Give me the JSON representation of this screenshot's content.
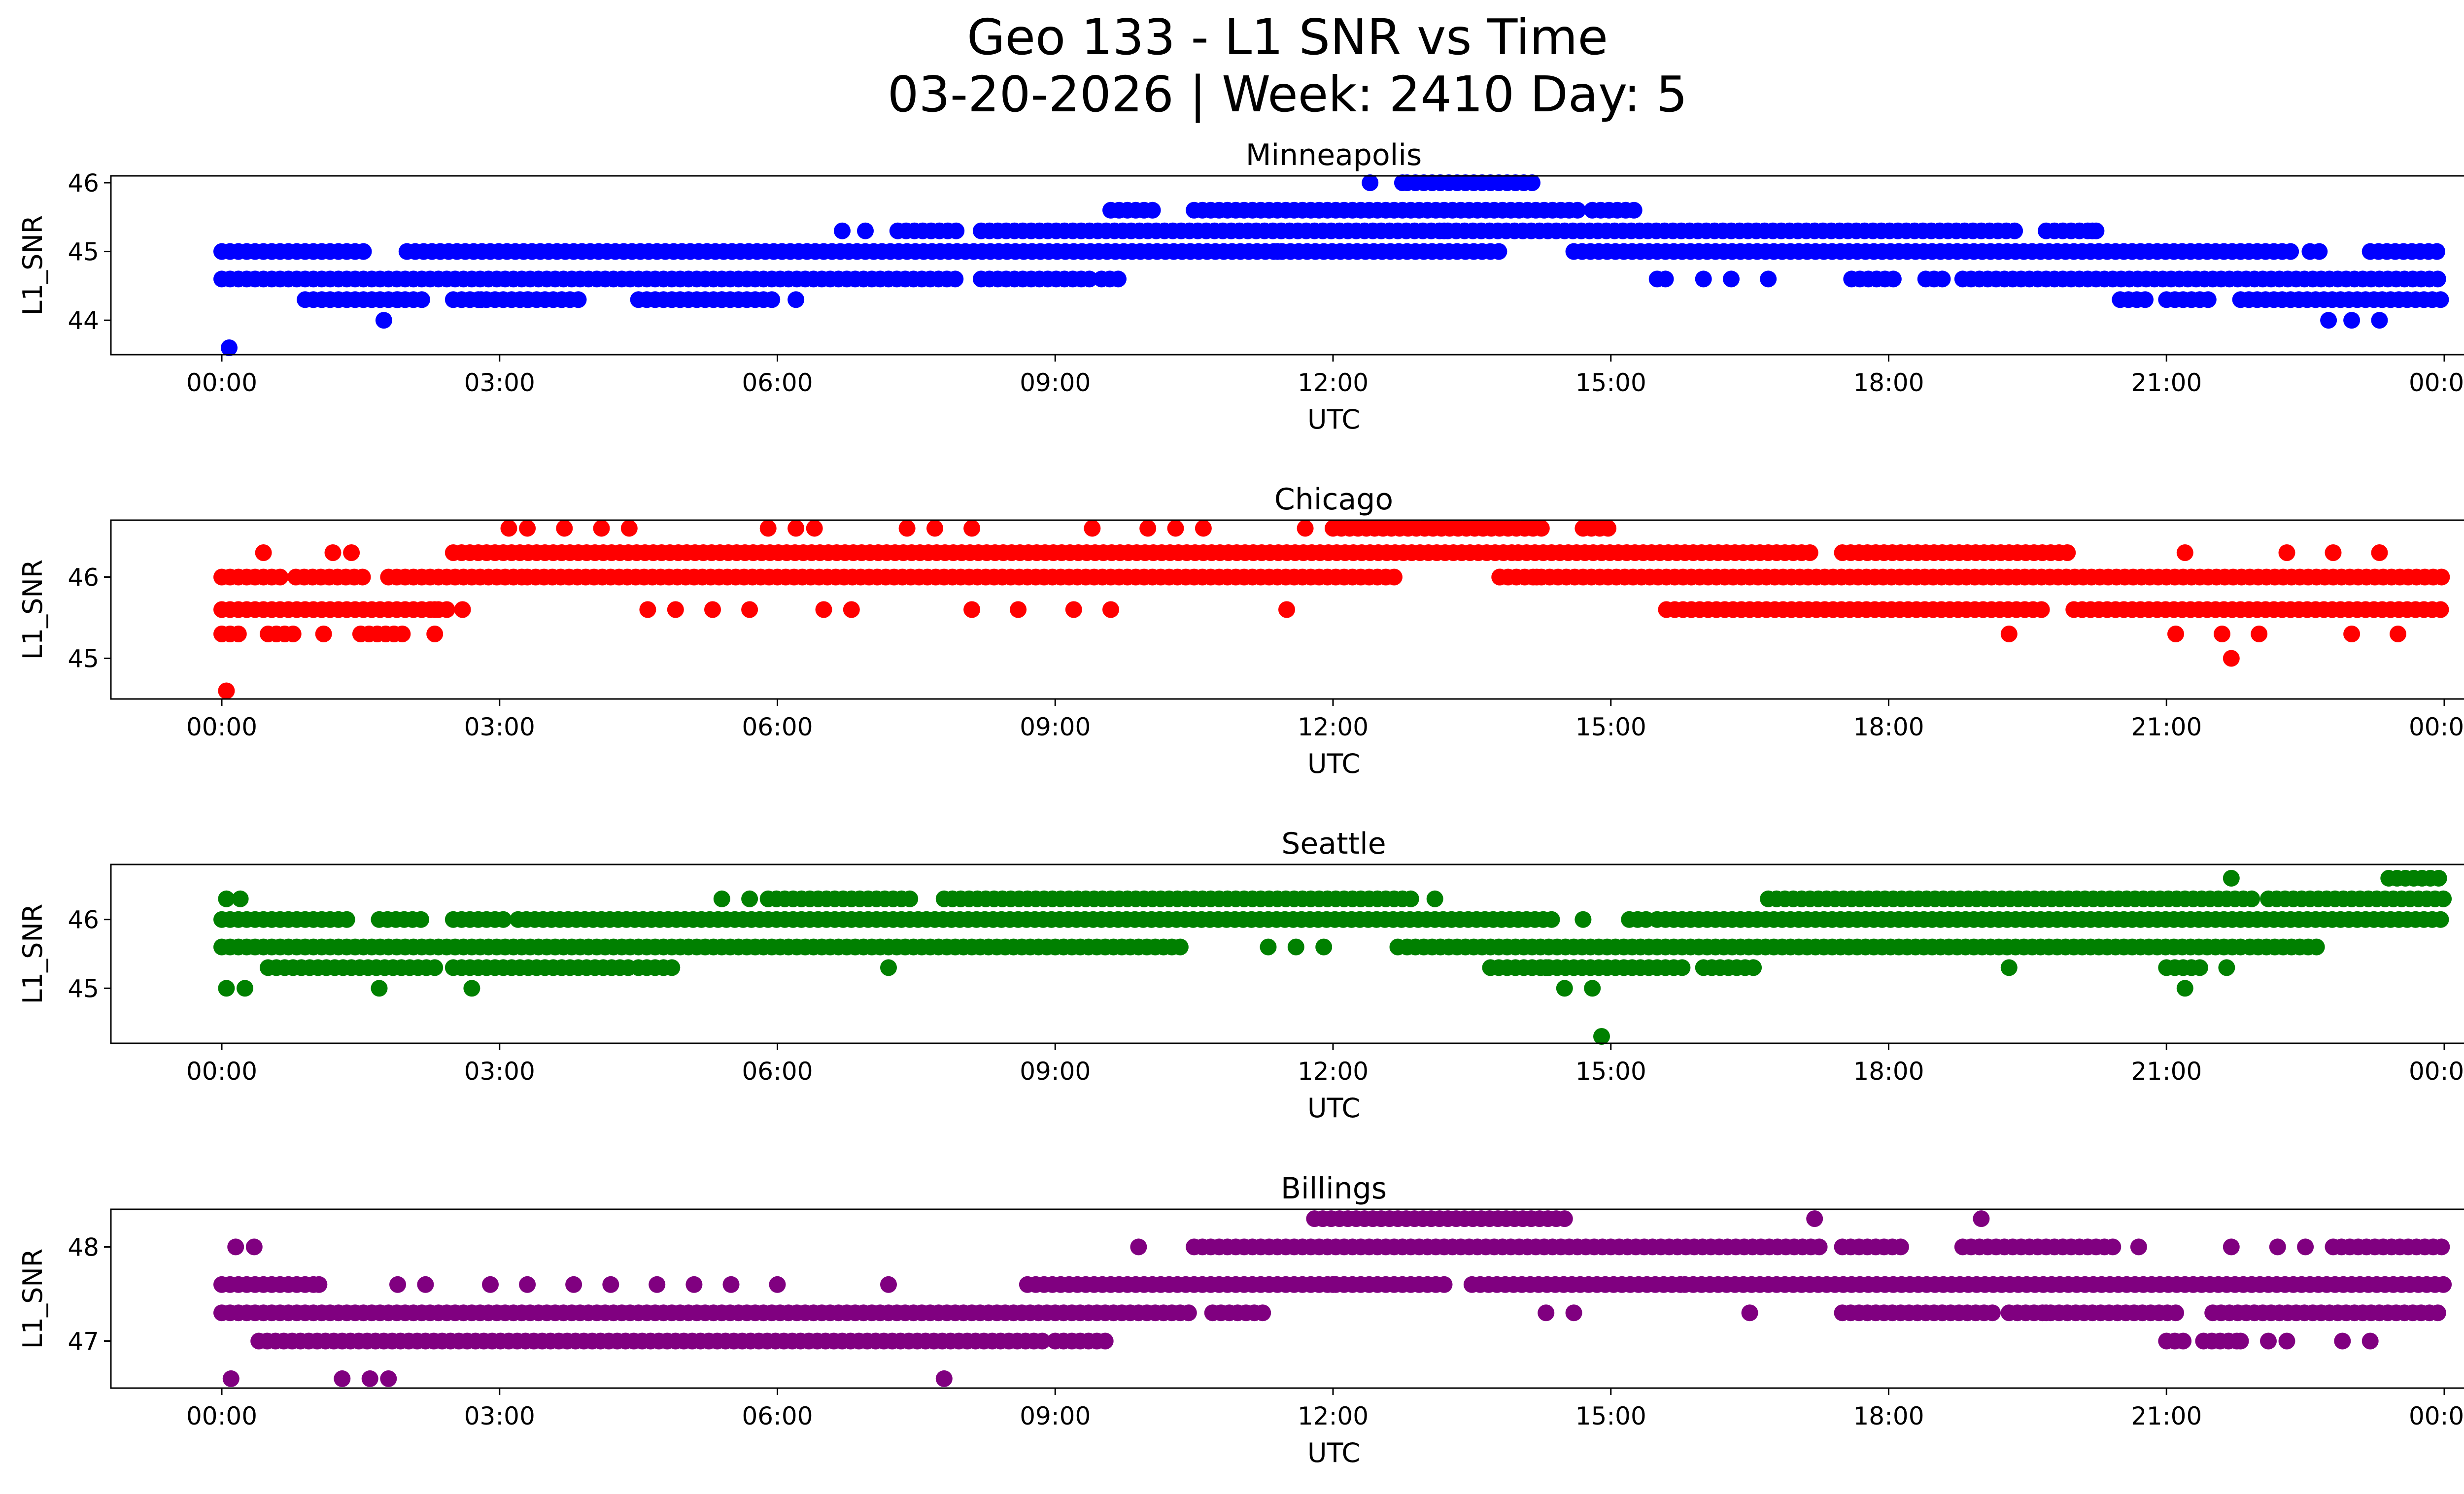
{
  "figure": {
    "title_line1": "Geo 133 - L1 SNR vs Time",
    "title_line2": "03-20-2026 | Week: 2410 Day: 5"
  },
  "chart_data": [
    {
      "type": "scatter",
      "title": "Minneapolis",
      "color": "#0000ff",
      "xlabel": "UTC",
      "ylabel": "L1_SNR",
      "xlim": [
        0,
        24
      ],
      "ylim": [
        43.5,
        46.1
      ],
      "yticks": [
        44,
        45,
        46
      ],
      "xticks": [
        "00:00",
        "03:00",
        "06:00",
        "09:00",
        "12:00",
        "15:00",
        "18:00",
        "21:00",
        "00:00"
      ],
      "series": [
        {
          "y": 45.0,
          "x_ranges": [
            [
              0.0,
              1.6
            ],
            [
              2.0,
              13.8
            ],
            [
              14.6,
              22.4
            ],
            [
              23.2,
              24.0
            ]
          ]
        },
        {
          "y": 44.6,
          "x_ranges": [
            [
              0.0,
              8.0
            ],
            [
              8.2,
              9.4
            ],
            [
              9.5,
              9.7
            ],
            [
              15.5,
              15.6
            ],
            [
              17.6,
              18.1
            ],
            [
              18.4,
              18.6
            ],
            [
              18.8,
              24.0
            ]
          ]
        },
        {
          "y": 44.3,
          "x_ranges": [
            [
              0.9,
              2.2
            ],
            [
              2.5,
              3.9
            ],
            [
              4.5,
              6.0
            ],
            [
              20.5,
              20.8
            ],
            [
              21.0,
              21.5
            ],
            [
              21.8,
              24.0
            ]
          ]
        },
        {
          "y": 45.3,
          "x_ranges": [
            [
              7.3,
              8.0
            ],
            [
              8.2,
              19.4
            ],
            [
              19.7,
              20.3
            ]
          ]
        },
        {
          "y": 45.6,
          "x_ranges": [
            [
              9.6,
              10.1
            ],
            [
              10.5,
              14.7
            ],
            [
              14.8,
              15.3
            ]
          ]
        },
        {
          "y": 46.0,
          "x_ranges": [
            [
              12.8,
              14.2
            ]
          ]
        }
      ],
      "points": [
        {
          "x": 0.08,
          "y": 43.6
        },
        {
          "x": 1.75,
          "y": 44.0
        },
        {
          "x": 6.7,
          "y": 45.3
        },
        {
          "x": 6.95,
          "y": 45.3
        },
        {
          "x": 11.4,
          "y": 45.0
        },
        {
          "x": 12.4,
          "y": 46.0
        },
        {
          "x": 12.75,
          "y": 46.0
        },
        {
          "x": 13.2,
          "y": 45.3
        },
        {
          "x": 16.0,
          "y": 44.6
        },
        {
          "x": 16.3,
          "y": 44.6
        },
        {
          "x": 16.7,
          "y": 44.6
        },
        {
          "x": 22.65,
          "y": 45.0
        },
        {
          "x": 22.55,
          "y": 45.0
        },
        {
          "x": 22.75,
          "y": 44.0
        },
        {
          "x": 23.0,
          "y": 44.0
        },
        {
          "x": 23.3,
          "y": 44.0
        },
        {
          "x": 1.9,
          "y": 44.3
        },
        {
          "x": 2.8,
          "y": 44.3
        },
        {
          "x": 3.3,
          "y": 44.3
        },
        {
          "x": 6.2,
          "y": 44.3
        },
        {
          "x": 5.4,
          "y": 44.3
        },
        {
          "x": 20.2,
          "y": 45.3
        }
      ]
    },
    {
      "type": "scatter",
      "title": "Chicago",
      "color": "#ff0000",
      "xlabel": "UTC",
      "ylabel": "L1_SNR",
      "xlim": [
        0,
        24
      ],
      "ylim": [
        44.5,
        46.7
      ],
      "yticks": [
        45,
        46
      ],
      "xticks": [
        "00:00",
        "03:00",
        "06:00",
        "09:00",
        "12:00",
        "15:00",
        "18:00",
        "21:00",
        "00:00"
      ],
      "series": [
        {
          "y": 46.0,
          "x_ranges": [
            [
              0.0,
              0.7
            ],
            [
              0.8,
              1.6
            ],
            [
              1.8,
              3.3
            ],
            [
              3.3,
              12.7
            ],
            [
              13.8,
              24.0
            ]
          ]
        },
        {
          "y": 45.6,
          "x_ranges": [
            [
              0.0,
              2.5
            ],
            [
              15.6,
              19.7
            ],
            [
              20.0,
              24.0
            ]
          ]
        },
        {
          "y": 46.3,
          "x_ranges": [
            [
              2.5,
              14.0
            ],
            [
              14.0,
              17.2
            ],
            [
              17.5,
              20.0
            ]
          ]
        },
        {
          "y": 46.6,
          "x_ranges": [
            [
              12.0,
              14.3
            ],
            [
              14.7,
              15.0
            ]
          ]
        },
        {
          "y": 45.3,
          "x_ranges": [
            [
              0.0,
              0.2
            ],
            [
              0.5,
              0.8
            ],
            [
              1.5,
              2.0
            ]
          ]
        }
      ],
      "points": [
        {
          "x": 0.05,
          "y": 44.6
        },
        {
          "x": 0.45,
          "y": 46.3
        },
        {
          "x": 1.2,
          "y": 46.3
        },
        {
          "x": 1.4,
          "y": 46.3
        },
        {
          "x": 3.1,
          "y": 46.6
        },
        {
          "x": 3.3,
          "y": 46.6
        },
        {
          "x": 3.7,
          "y": 46.6
        },
        {
          "x": 4.1,
          "y": 46.6
        },
        {
          "x": 4.4,
          "y": 46.6
        },
        {
          "x": 5.9,
          "y": 46.6
        },
        {
          "x": 6.2,
          "y": 46.6
        },
        {
          "x": 6.4,
          "y": 46.6
        },
        {
          "x": 7.4,
          "y": 46.6
        },
        {
          "x": 7.7,
          "y": 46.6
        },
        {
          "x": 8.1,
          "y": 46.6
        },
        {
          "x": 9.4,
          "y": 46.6
        },
        {
          "x": 10.0,
          "y": 46.6
        },
        {
          "x": 10.3,
          "y": 46.6
        },
        {
          "x": 10.6,
          "y": 46.6
        },
        {
          "x": 11.7,
          "y": 46.6
        },
        {
          "x": 2.3,
          "y": 45.6
        },
        {
          "x": 2.6,
          "y": 45.6
        },
        {
          "x": 4.6,
          "y": 45.6
        },
        {
          "x": 4.9,
          "y": 45.6
        },
        {
          "x": 5.3,
          "y": 45.6
        },
        {
          "x": 5.7,
          "y": 45.6
        },
        {
          "x": 6.5,
          "y": 45.6
        },
        {
          "x": 6.8,
          "y": 45.6
        },
        {
          "x": 8.1,
          "y": 45.6
        },
        {
          "x": 8.6,
          "y": 45.6
        },
        {
          "x": 9.2,
          "y": 45.6
        },
        {
          "x": 9.6,
          "y": 45.6
        },
        {
          "x": 11.5,
          "y": 45.6
        },
        {
          "x": 1.1,
          "y": 45.3
        },
        {
          "x": 2.3,
          "y": 45.3
        },
        {
          "x": 19.3,
          "y": 45.3
        },
        {
          "x": 21.1,
          "y": 45.3
        },
        {
          "x": 21.6,
          "y": 45.3
        },
        {
          "x": 22.0,
          "y": 45.3
        },
        {
          "x": 23.0,
          "y": 45.3
        },
        {
          "x": 23.5,
          "y": 45.3
        },
        {
          "x": 21.7,
          "y": 45.0
        },
        {
          "x": 13.8,
          "y": 46.0
        },
        {
          "x": 14.2,
          "y": 46.0
        },
        {
          "x": 21.2,
          "y": 46.3
        },
        {
          "x": 22.3,
          "y": 46.3
        },
        {
          "x": 22.8,
          "y": 46.3
        },
        {
          "x": 23.3,
          "y": 46.3
        }
      ]
    },
    {
      "type": "scatter",
      "title": "Seattle",
      "color": "#008000",
      "xlabel": "UTC",
      "ylabel": "L1_SNR",
      "xlim": [
        0,
        24
      ],
      "ylim": [
        44.2,
        46.8
      ],
      "yticks": [
        45,
        46
      ],
      "xticks": [
        "00:00",
        "03:00",
        "06:00",
        "09:00",
        "12:00",
        "15:00",
        "18:00",
        "21:00",
        "00:00"
      ],
      "series": [
        {
          "y": 46.0,
          "x_ranges": [
            [
              0.0,
              1.4
            ],
            [
              1.7,
              2.2
            ],
            [
              2.5,
              3.1
            ],
            [
              3.2,
              14.4
            ],
            [
              15.2,
              15.4
            ],
            [
              15.5,
              24.0
            ]
          ]
        },
        {
          "y": 45.6,
          "x_ranges": [
            [
              0.0,
              10.4
            ],
            [
              12.8,
              21.8
            ],
            [
              21.9,
              22.7
            ]
          ]
        },
        {
          "y": 45.3,
          "x_ranges": [
            [
              0.5,
              2.3
            ],
            [
              2.5,
              4.4
            ],
            [
              4.5,
              4.9
            ],
            [
              13.7,
              15.8
            ],
            [
              16.0,
              16.6
            ],
            [
              21.0,
              21.4
            ]
          ]
        },
        {
          "y": 46.3,
          "x_ranges": [
            [
              5.9,
              7.5
            ],
            [
              7.8,
              12.9
            ],
            [
              16.7,
              22.0
            ],
            [
              22.1,
              24.0
            ]
          ]
        },
        {
          "y": 46.6,
          "x_ranges": [
            [
              23.4,
              24.0
            ]
          ]
        }
      ],
      "points": [
        {
          "x": 0.05,
          "y": 46.3
        },
        {
          "x": 0.2,
          "y": 46.3
        },
        {
          "x": 5.4,
          "y": 46.3
        },
        {
          "x": 5.7,
          "y": 46.3
        },
        {
          "x": 0.05,
          "y": 45.0
        },
        {
          "x": 0.25,
          "y": 45.0
        },
        {
          "x": 1.7,
          "y": 45.0
        },
        {
          "x": 2.7,
          "y": 45.0
        },
        {
          "x": 7.2,
          "y": 45.3
        },
        {
          "x": 11.3,
          "y": 45.6
        },
        {
          "x": 11.6,
          "y": 45.6
        },
        {
          "x": 11.9,
          "y": 45.6
        },
        {
          "x": 12.7,
          "y": 45.6
        },
        {
          "x": 13.1,
          "y": 46.3
        },
        {
          "x": 14.5,
          "y": 45.0
        },
        {
          "x": 14.8,
          "y": 45.0
        },
        {
          "x": 14.9,
          "y": 44.3
        },
        {
          "x": 14.3,
          "y": 45.3
        },
        {
          "x": 19.3,
          "y": 45.3
        },
        {
          "x": 21.2,
          "y": 45.0
        },
        {
          "x": 21.65,
          "y": 45.3
        },
        {
          "x": 21.7,
          "y": 46.6
        },
        {
          "x": 14.7,
          "y": 46.0
        }
      ]
    },
    {
      "type": "scatter",
      "title": "Billings",
      "color": "#800080",
      "xlabel": "UTC",
      "ylabel": "L1_SNR",
      "xlim": [
        0,
        24
      ],
      "ylim": [
        46.5,
        48.4
      ],
      "yticks": [
        47,
        48
      ],
      "xticks": [
        "00:00",
        "03:00",
        "06:00",
        "09:00",
        "12:00",
        "15:00",
        "18:00",
        "21:00",
        "00:00"
      ],
      "series": [
        {
          "y": 47.3,
          "x_ranges": [
            [
              0.0,
              10.5
            ],
            [
              10.7,
              11.3
            ],
            [
              17.5,
              19.2
            ],
            [
              19.3,
              21.1
            ],
            [
              21.5,
              24.0
            ]
          ]
        },
        {
          "y": 47.6,
          "x_ranges": [
            [
              0.0,
              1.0
            ],
            [
              8.7,
              13.2
            ],
            [
              13.5,
              15.8
            ],
            [
              15.8,
              24.0
            ]
          ]
        },
        {
          "y": 47.0,
          "x_ranges": [
            [
              0.4,
              8.9
            ],
            [
              9.0,
              9.6
            ],
            [
              21.0,
              21.2
            ],
            [
              21.4,
              21.8
            ]
          ]
        },
        {
          "y": 48.0,
          "x_ranges": [
            [
              10.5,
              17.3
            ],
            [
              17.5,
              18.2
            ],
            [
              18.8,
              20.5
            ],
            [
              22.8,
              24.0
            ]
          ]
        },
        {
          "y": 48.3,
          "x_ranges": [
            [
              11.8,
              14.5
            ]
          ]
        }
      ],
      "points": [
        {
          "x": 0.1,
          "y": 46.6
        },
        {
          "x": 1.3,
          "y": 46.6
        },
        {
          "x": 1.6,
          "y": 46.6
        },
        {
          "x": 1.8,
          "y": 46.6
        },
        {
          "x": 7.8,
          "y": 46.6
        },
        {
          "x": 0.15,
          "y": 48.0
        },
        {
          "x": 0.35,
          "y": 48.0
        },
        {
          "x": 1.05,
          "y": 47.6
        },
        {
          "x": 1.9,
          "y": 47.6
        },
        {
          "x": 2.2,
          "y": 47.6
        },
        {
          "x": 2.9,
          "y": 47.6
        },
        {
          "x": 3.3,
          "y": 47.6
        },
        {
          "x": 3.8,
          "y": 47.6
        },
        {
          "x": 4.2,
          "y": 47.6
        },
        {
          "x": 4.7,
          "y": 47.6
        },
        {
          "x": 5.1,
          "y": 47.6
        },
        {
          "x": 5.5,
          "y": 47.6
        },
        {
          "x": 6.0,
          "y": 47.6
        },
        {
          "x": 7.2,
          "y": 47.6
        },
        {
          "x": 9.9,
          "y": 48.0
        },
        {
          "x": 14.3,
          "y": 47.3
        },
        {
          "x": 14.6,
          "y": 47.3
        },
        {
          "x": 16.5,
          "y": 47.3
        },
        {
          "x": 17.2,
          "y": 48.3
        },
        {
          "x": 19.0,
          "y": 48.3
        },
        {
          "x": 20.7,
          "y": 48.0
        },
        {
          "x": 21.7,
          "y": 48.0
        },
        {
          "x": 22.2,
          "y": 48.0
        },
        {
          "x": 22.5,
          "y": 48.0
        },
        {
          "x": 22.9,
          "y": 47.0
        },
        {
          "x": 23.2,
          "y": 47.0
        },
        {
          "x": 22.1,
          "y": 47.0
        },
        {
          "x": 22.3,
          "y": 47.0
        },
        {
          "x": 21.8,
          "y": 47.0
        },
        {
          "x": 12.0,
          "y": 47.6
        },
        {
          "x": 19.7,
          "y": 47.3
        }
      ]
    }
  ]
}
